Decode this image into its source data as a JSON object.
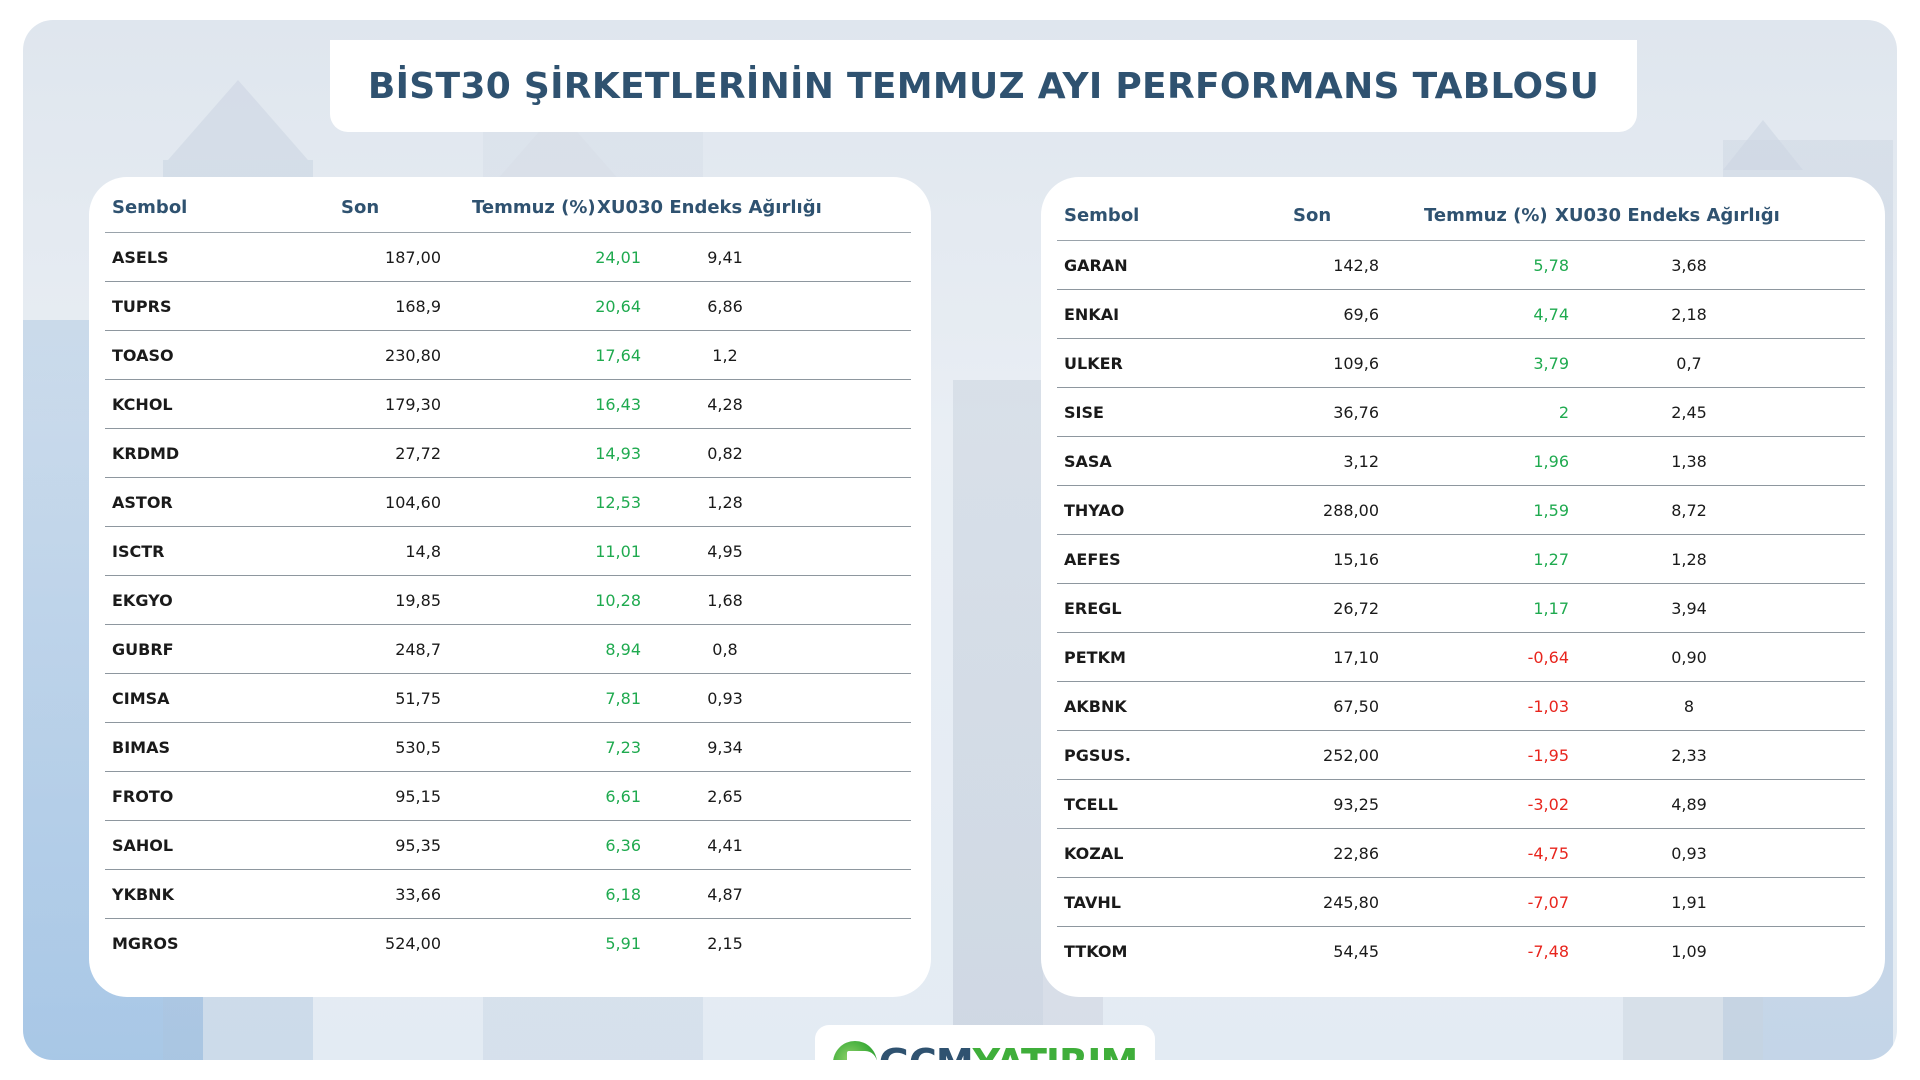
{
  "title": "BİST30 ŞİRKETLERİNİN TEMMUZ AYI PERFORMANS TABLOSU",
  "columns": {
    "symbol": "Sembol",
    "last": "Son",
    "july": "Temmuz (%)",
    "weight": "XU030 Endeks Ağırlığı"
  },
  "colors": {
    "positive": "#1faa4f",
    "negative": "#e8251d",
    "header": "#2f5270"
  },
  "left_table": [
    {
      "symbol": "ASELS",
      "last": "187,00",
      "july": "24,01",
      "weight": "9,41",
      "trend": "positive"
    },
    {
      "symbol": "TUPRS",
      "last": "168,9",
      "july": "20,64",
      "weight": "6,86",
      "trend": "positive"
    },
    {
      "symbol": "TOASO",
      "last": "230,80",
      "july": "17,64",
      "weight": "1,2",
      "trend": "positive"
    },
    {
      "symbol": "KCHOL",
      "last": "179,30",
      "july": "16,43",
      "weight": "4,28",
      "trend": "positive"
    },
    {
      "symbol": "KRDMD",
      "last": "27,72",
      "july": "14,93",
      "weight": "0,82",
      "trend": "positive"
    },
    {
      "symbol": "ASTOR",
      "last": "104,60",
      "july": "12,53",
      "weight": "1,28",
      "trend": "positive"
    },
    {
      "symbol": "ISCTR",
      "last": "14,8",
      "july": "11,01",
      "weight": "4,95",
      "trend": "positive"
    },
    {
      "symbol": "EKGYO",
      "last": "19,85",
      "july": "10,28",
      "weight": "1,68",
      "trend": "positive"
    },
    {
      "symbol": "GUBRF",
      "last": "248,7",
      "july": "8,94",
      "weight": "0,8",
      "trend": "positive"
    },
    {
      "symbol": "CIMSA",
      "last": "51,75",
      "july": "7,81",
      "weight": "0,93",
      "trend": "positive"
    },
    {
      "symbol": "BIMAS",
      "last": "530,5",
      "july": "7,23",
      "weight": "9,34",
      "trend": "positive"
    },
    {
      "symbol": "FROTO",
      "last": "95,15",
      "july": "6,61",
      "weight": "2,65",
      "trend": "positive"
    },
    {
      "symbol": "SAHOL",
      "last": "95,35",
      "july": "6,36",
      "weight": "4,41",
      "trend": "positive"
    },
    {
      "symbol": "YKBNK",
      "last": "33,66",
      "july": "6,18",
      "weight": "4,87",
      "trend": "positive"
    },
    {
      "symbol": "MGROS",
      "last": "524,00",
      "july": "5,91",
      "weight": "2,15",
      "trend": "positive"
    }
  ],
  "right_table": [
    {
      "symbol": "GARAN",
      "last": "142,8",
      "july": "5,78",
      "weight": "3,68",
      "trend": "positive"
    },
    {
      "symbol": "ENKAI",
      "last": "69,6",
      "july": "4,74",
      "weight": "2,18",
      "trend": "positive"
    },
    {
      "symbol": "ULKER",
      "last": "109,6",
      "july": "3,79",
      "weight": "0,7",
      "trend": "positive"
    },
    {
      "symbol": "SISE",
      "last": "36,76",
      "july": "2",
      "weight": "2,45",
      "trend": "positive"
    },
    {
      "symbol": "SASA",
      "last": "3,12",
      "july": "1,96",
      "weight": "1,38",
      "trend": "positive"
    },
    {
      "symbol": "THYAO",
      "last": "288,00",
      "july": "1,59",
      "weight": "8,72",
      "trend": "positive"
    },
    {
      "symbol": "AEFES",
      "last": "15,16",
      "july": "1,27",
      "weight": "1,28",
      "trend": "positive"
    },
    {
      "symbol": "EREGL",
      "last": "26,72",
      "july": "1,17",
      "weight": "3,94",
      "trend": "positive"
    },
    {
      "symbol": "PETKM",
      "last": "17,10",
      "july": "-0,64",
      "weight": "0,90",
      "trend": "negative"
    },
    {
      "symbol": "AKBNK",
      "last": "67,50",
      "july": "-1,03",
      "weight": "8",
      "trend": "negative"
    },
    {
      "symbol": "PGSUS.",
      "last": "252,00",
      "july": "-1,95",
      "weight": "2,33",
      "trend": "negative"
    },
    {
      "symbol": "TCELL",
      "last": "93,25",
      "july": "-3,02",
      "weight": "4,89",
      "trend": "negative"
    },
    {
      "symbol": "KOZAL",
      "last": "22,86",
      "july": "-4,75",
      "weight": "0,93",
      "trend": "negative"
    },
    {
      "symbol": "TAVHL",
      "last": "245,80",
      "july": "-7,07",
      "weight": "1,91",
      "trend": "negative"
    },
    {
      "symbol": "TTKOM",
      "last": "54,45",
      "july": "-7,48",
      "weight": "1,09",
      "trend": "negative"
    }
  ],
  "logo": {
    "brand": "GCM",
    "suffix": "YATIRIM",
    "icon": "gcm-globe-icon"
  }
}
